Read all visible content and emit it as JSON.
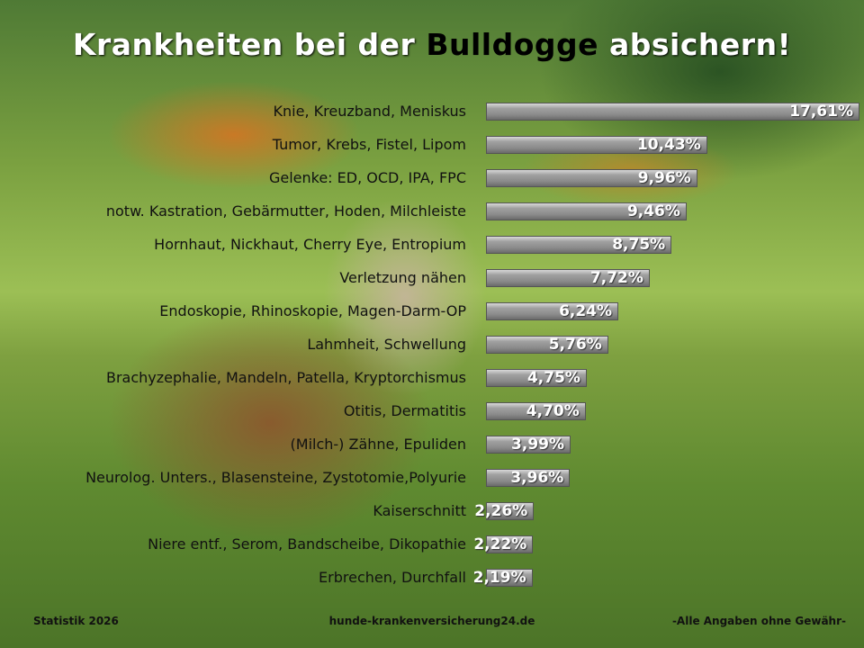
{
  "title": {
    "part1": "Krankheiten bei der ",
    "highlight": "Bulldogge",
    "part2": " absichern!"
  },
  "chart_data": {
    "type": "bar",
    "orientation": "horizontal",
    "categories": [
      "Knie, Kreuzband, Meniskus",
      "Tumor, Krebs, Fistel, Lipom",
      "Gelenke: ED, OCD, IPA, FPC",
      "notw. Kastration, Gebärmutter, Hoden, Milchleiste",
      "Hornhaut, Nickhaut, Cherry Eye, Entropium",
      "Verletzung nähen",
      "Endoskopie, Rhinoskopie, Magen-Darm-OP",
      "Lahmheit, Schwellung",
      "Brachyzephalie, Mandeln, Patella, Kryptorchismus",
      "Otitis, Dermatitis",
      "(Milch-) Zähne, Epuliden",
      "Neurolog. Unters., Blasensteine, Zystotomie,Polyurie",
      "Kaiserschnitt",
      "Niere entf., Serom, Bandscheibe, Dikopathie",
      "Erbrechen, Durchfall"
    ],
    "values": [
      17.61,
      10.43,
      9.96,
      9.46,
      8.75,
      7.72,
      6.24,
      5.76,
      4.75,
      4.7,
      3.99,
      3.96,
      2.26,
      2.22,
      2.19
    ],
    "value_labels": [
      "17,61%",
      "10,43%",
      "9,96%",
      "9,46%",
      "8,75%",
      "7,72%",
      "6,24%",
      "5,76%",
      "4,75%",
      "4,70%",
      "3,99%",
      "3,96%",
      "2,26%",
      "2,22%",
      "2,19%"
    ],
    "bar_color": "#8a8a8a",
    "grid": false
  },
  "footer": {
    "left": "Statistik 2026",
    "center": "hunde-krankenversicherung24.de",
    "right": "-Alle Angaben ohne Gewähr-"
  }
}
